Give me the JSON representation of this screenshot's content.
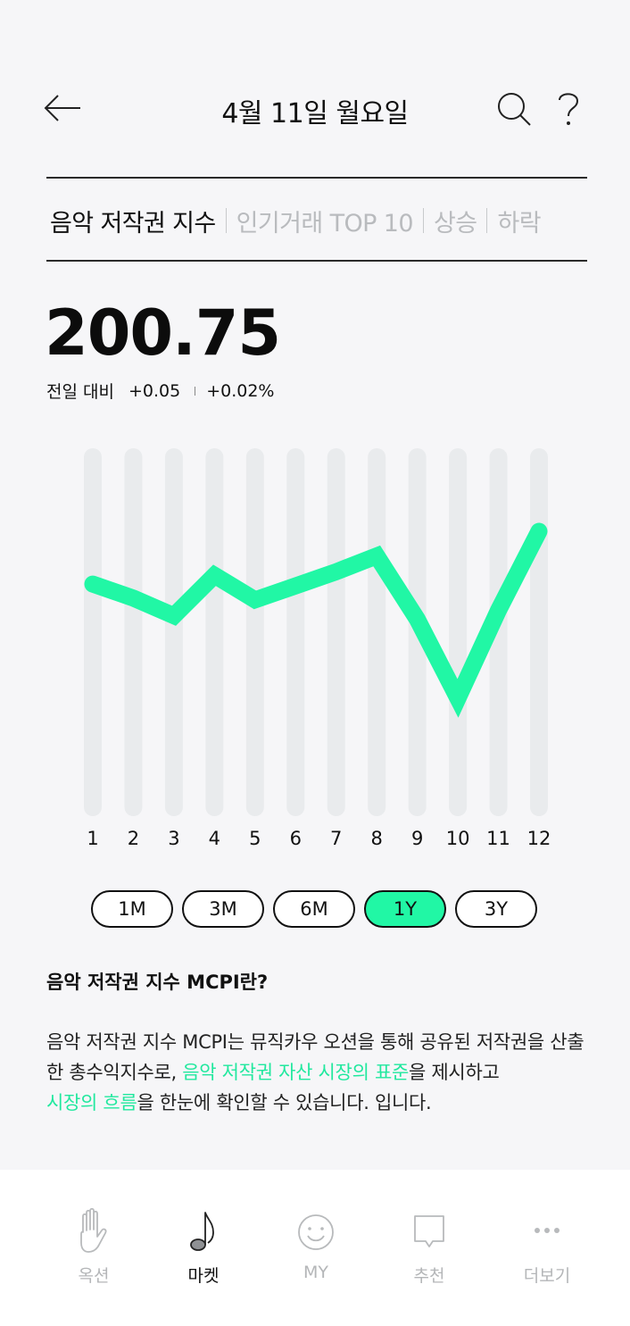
{
  "header": {
    "title": "4월 11일 월요일",
    "back_icon": "arrow-left-icon",
    "search_icon": "search-icon",
    "help_icon": "question-icon"
  },
  "tabs": [
    {
      "label": "음악 저작권 지수",
      "active": true
    },
    {
      "label": "인기거래 TOP 10",
      "active": false
    },
    {
      "label": "상승",
      "active": false
    },
    {
      "label": "하락",
      "active": false
    }
  ],
  "index": {
    "value": "200.75",
    "change_label": "전일 대비",
    "change_abs": "+0.05",
    "change_pct": "+0.02%"
  },
  "chart_data": {
    "type": "line",
    "categories": [
      "1",
      "2",
      "3",
      "4",
      "5",
      "6",
      "7",
      "8",
      "9",
      "10",
      "11",
      "12"
    ],
    "series": [
      {
        "values": [
          0.7,
          0.62,
          0.52,
          0.75,
          0.61,
          0.69,
          0.77,
          0.86,
          0.5,
          0.05,
          0.55,
          1.0
        ]
      }
    ],
    "line_color": "#21f7a5",
    "bar_color": "#e9ebed"
  },
  "periods": [
    {
      "label": "1M",
      "active": false
    },
    {
      "label": "3M",
      "active": false
    },
    {
      "label": "6M",
      "active": false
    },
    {
      "label": "1Y",
      "active": true
    },
    {
      "label": "3Y",
      "active": false
    }
  ],
  "about": {
    "title": "음악 저작권 지수 MCPI란?",
    "text_1": "음악 저작권 지수 MCPI는 뮤직카우 오션을 통해 공유된 저작권을 산출한 총수익지수로, ",
    "highlight_1": "음악 저작권 자산 시장의 표준",
    "text_2": "을 제시하고 ",
    "highlight_2": "시장의 흐름",
    "text_3": "을 한눈에 확인할 수 있습니다. 입니다.",
    "highlight_color": "#21e89e"
  },
  "bottom_nav": [
    {
      "label": "옥션",
      "icon": "hand-icon",
      "active": false
    },
    {
      "label": "마켓",
      "icon": "music-note-icon",
      "active": true
    },
    {
      "label": "MY",
      "icon": "smile-icon",
      "active": false
    },
    {
      "label": "추천",
      "icon": "chat-bubble-icon",
      "active": false
    },
    {
      "label": "더보기",
      "icon": "more-dots-icon",
      "active": false
    }
  ]
}
